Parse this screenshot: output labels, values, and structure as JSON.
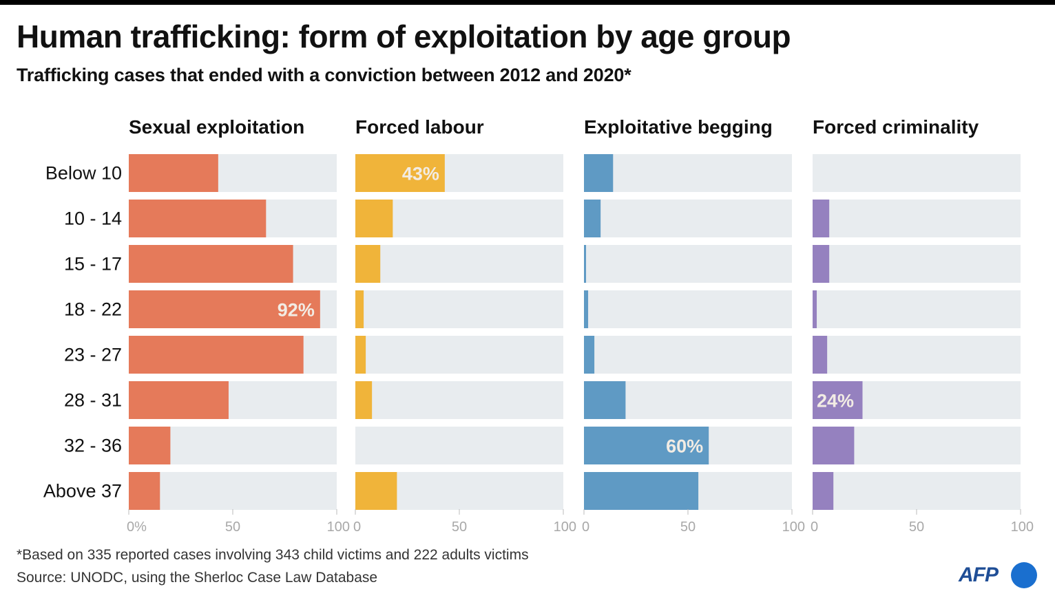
{
  "title": "Human trafficking: form of exploitation by age group",
  "subtitle": "Trafficking cases that ended with a conviction between 2012 and 2020*",
  "footnote": "*Based on 335 reported cases involving 343 child victims and 222 adults victims",
  "source": "Source: UNODC, using the Sherloc Case Law Database",
  "logo": "AFP",
  "colors": {
    "track": "#e8ecef",
    "axis": "#bbbbbb",
    "tick_label": "#a8a8a8",
    "label_on_bar": "#f2ece4"
  },
  "chart_data": {
    "type": "bar",
    "orientation": "horizontal",
    "categories": [
      "Below 10",
      "10 - 14",
      "15 - 17",
      "18 - 22",
      "23 - 27",
      "28 - 31",
      "32 - 36",
      "Above 37"
    ],
    "xlim": [
      0,
      100
    ],
    "ticks": [
      "0%",
      "50",
      "100"
    ],
    "ticks_other": [
      "0",
      "50",
      "100"
    ],
    "series": [
      {
        "name": "Sexual exploitation",
        "color": "#e57a5a",
        "values": [
          43,
          66,
          79,
          92,
          84,
          48,
          20,
          15
        ],
        "annotation": {
          "index": 3,
          "label": "92%"
        }
      },
      {
        "name": "Forced labour",
        "color": "#f0b43a",
        "values": [
          43,
          18,
          12,
          4,
          5,
          8,
          0,
          20
        ],
        "annotation": {
          "index": 0,
          "label": "43%"
        }
      },
      {
        "name": "Exploitative begging",
        "color": "#5f9ac4",
        "values": [
          14,
          8,
          1,
          2,
          5,
          20,
          60,
          55
        ],
        "annotation": {
          "index": 6,
          "label": "60%"
        }
      },
      {
        "name": "Forced criminality",
        "color": "#9581bf",
        "values": [
          0,
          8,
          8,
          2,
          7,
          24,
          20,
          10
        ],
        "annotation": {
          "index": 5,
          "label": "24%"
        }
      }
    ]
  }
}
